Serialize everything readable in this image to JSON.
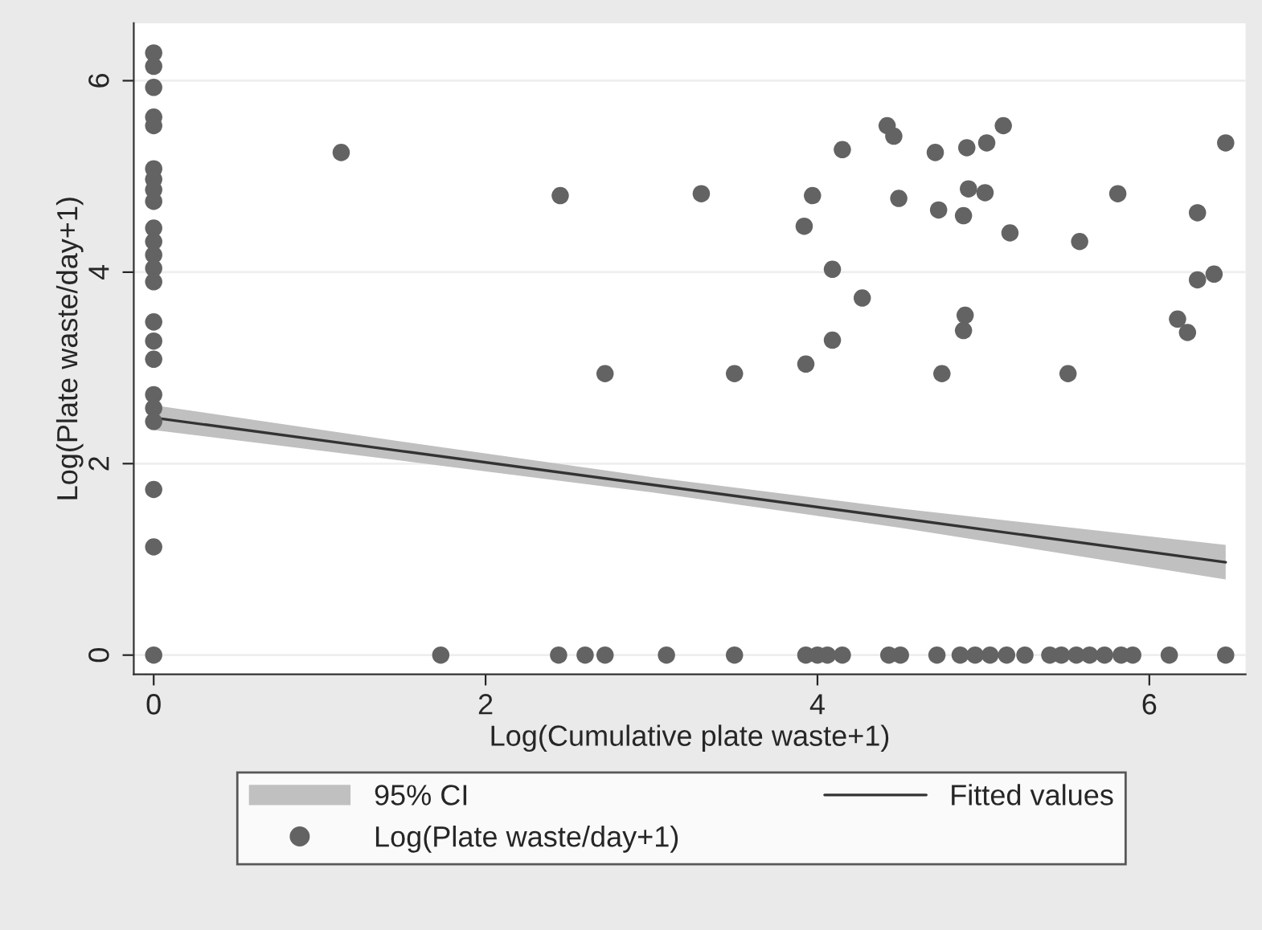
{
  "chart_data": {
    "type": "scatter",
    "xlabel": "Log(Cumulative plate waste+1)",
    "ylabel": "Log(Plate waste/day+1)",
    "xlim": [
      -0.12,
      6.58
    ],
    "ylim": [
      -0.2,
      6.6
    ],
    "xticks": [
      0,
      2,
      4,
      6
    ],
    "yticks": [
      0,
      2,
      4,
      6
    ],
    "grid": "y",
    "legend": "bottom",
    "series": [
      {
        "name": "95% CI",
        "type": "area",
        "color": "#c0c0c0"
      },
      {
        "name": "Log(Plate waste/day+1)",
        "color": "#636363",
        "marker": "circle",
        "x": [
          0,
          0,
          0,
          0,
          0,
          0,
          0,
          0,
          0,
          0,
          0,
          0,
          0,
          0,
          0,
          0,
          0,
          0,
          0,
          0,
          0,
          0,
          0,
          1.13,
          1.73,
          2.45,
          3.3,
          3.97,
          3.92,
          4.09,
          4.09,
          3.93,
          2.72,
          3.5,
          4.15,
          4.42,
          4.46,
          5.12,
          4.71,
          4.9,
          5.02,
          6.46,
          4.49,
          4.73,
          4.88,
          4.91,
          5.01,
          5.16,
          5.81,
          5.58,
          6.29,
          6.29,
          6.39,
          6.17,
          6.23,
          4.27,
          4.89,
          4.88,
          4.75,
          5.51,
          2.44,
          2.6,
          2.72,
          3.09,
          3.5,
          3.93,
          4.0,
          4.06,
          4.15,
          4.43,
          4.5,
          4.72,
          4.86,
          4.95,
          5.04,
          5.14,
          5.25,
          5.4,
          5.47,
          5.56,
          5.64,
          5.73,
          5.83,
          5.9,
          6.12,
          6.46
        ],
        "values": [
          6.29,
          6.15,
          5.93,
          5.62,
          5.53,
          5.08,
          4.97,
          4.86,
          4.74,
          4.46,
          4.32,
          4.18,
          4.04,
          3.9,
          3.48,
          3.28,
          3.09,
          2.72,
          2.58,
          2.44,
          1.73,
          1.13,
          0,
          5.25,
          0,
          4.8,
          4.82,
          4.8,
          4.48,
          4.03,
          3.29,
          3.04,
          2.94,
          2.94,
          5.28,
          5.53,
          5.42,
          5.53,
          5.25,
          5.3,
          5.35,
          5.35,
          4.77,
          4.65,
          4.59,
          4.87,
          4.83,
          4.41,
          4.82,
          4.32,
          4.62,
          3.92,
          3.98,
          3.51,
          3.37,
          3.73,
          3.55,
          3.39,
          2.94,
          2.94,
          0,
          0,
          0,
          0,
          0,
          0,
          0,
          0,
          0,
          0,
          0,
          0,
          0,
          0,
          0,
          0,
          0,
          0,
          0,
          0,
          0,
          0,
          0,
          0,
          0,
          0
        ]
      },
      {
        "name": "Fitted values",
        "type": "line",
        "color": "#333333",
        "x": [
          0,
          1.5,
          3,
          4.5,
          6.46
        ],
        "values": [
          2.48,
          2.13,
          1.78,
          1.43,
          0.97
        ],
        "lower": [
          2.35,
          2.03,
          1.7,
          1.33,
          0.79
        ],
        "upper": [
          2.61,
          2.23,
          1.86,
          1.53,
          1.15
        ],
        "line_style": "solid"
      }
    ]
  }
}
